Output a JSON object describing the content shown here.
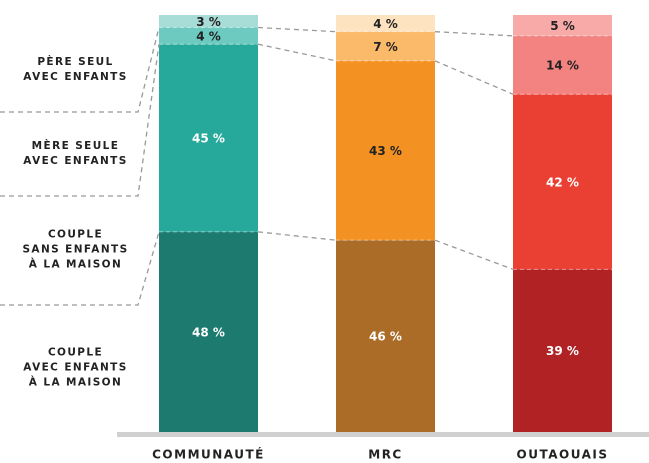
{
  "chart_data": {
    "type": "stacked_bar",
    "categories": [
      "COMMUNAUTÉ",
      "MRC",
      "OUTAOUAIS"
    ],
    "ylim": [
      0,
      100
    ],
    "series": [
      {
        "name": "COUPLE\nAVEC ENFANTS\nÀ LA MAISON",
        "colors": [
          "#1d7a6e",
          "#ab6c27",
          "#b02224"
        ],
        "values": [
          48,
          46,
          39
        ],
        "value_labels": [
          "48 %",
          "46 %",
          "39 %"
        ]
      },
      {
        "name": "COUPLE\nSANS ENFANTS\nÀ LA MAISON",
        "colors": [
          "#26a99a",
          "#f39222",
          "#ea3f33"
        ],
        "values": [
          45,
          43,
          42
        ],
        "value_labels": [
          "45 %",
          "43 %",
          "42 %"
        ]
      },
      {
        "name": "MÈRE SEULE\nAVEC ENFANTS",
        "colors": [
          "#6ccac1",
          "#fbb96a",
          "#f28380"
        ],
        "values": [
          4,
          7,
          14
        ],
        "value_labels": [
          "4 %",
          "7 %",
          "14 %"
        ]
      },
      {
        "name": "PÈRE SEUL\nAVEC ENFANTS",
        "colors": [
          "#a8dcd6",
          "#fde3bf",
          "#f7aaa8"
        ],
        "values": [
          3,
          4,
          5
        ],
        "value_labels": [
          "3 %",
          "4 %",
          "5 %"
        ]
      }
    ]
  }
}
